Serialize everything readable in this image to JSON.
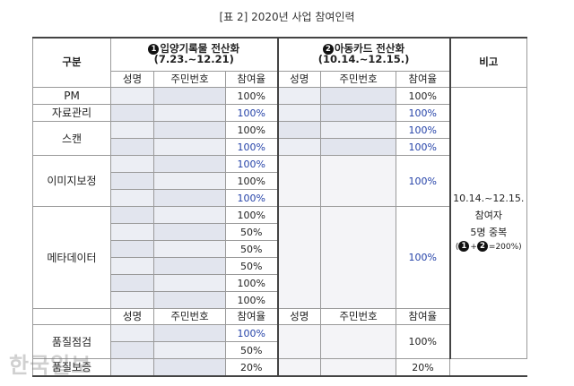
{
  "caption": "[표 2] 2020년 사업 참여인력",
  "header": {
    "category": "구분",
    "group1_num": "1",
    "group1_title": "입양기록물 전산화(7.23.~12.21)",
    "group2_num": "2",
    "group2_title": "아동카드 전산화(10.14.~12.15.)",
    "remarks": "비고",
    "name": "성명",
    "id_number": "주민번호",
    "rate": "참여율"
  },
  "sections": {
    "pm": "PM",
    "data_mgmt": "자료관리",
    "scan": "스캔",
    "image_correction": "이미지보정",
    "metadata": "메타데이터",
    "qc_check": "품질점검",
    "qa": "품질보증"
  },
  "rates1": [
    "100%",
    "100%",
    "100%",
    "100%",
    "100%",
    "100%",
    "100%",
    "100%",
    "50%",
    "50%",
    "50%",
    "100%",
    "100%",
    "100%",
    "50%",
    "20%"
  ],
  "rates2": {
    "pm": "100%",
    "data_mgmt": "100%",
    "scan_a": "100%",
    "scan_b": "100%",
    "image_correction": "100%",
    "metadata": "100%",
    "qc_check": "100%",
    "qa": "20%"
  },
  "note": {
    "line1": "10.14.~12.15.",
    "line2": "참여자",
    "line3": "5명 중복",
    "line4_open": "(",
    "n1": "1",
    "plus": "+",
    "n2": "2",
    "line4_close": "=200%)"
  },
  "watermark": "한국일보"
}
